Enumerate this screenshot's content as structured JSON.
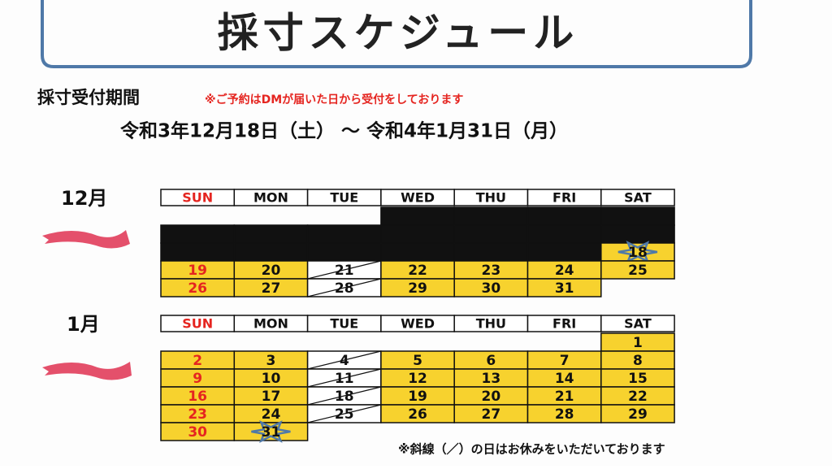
{
  "header": {
    "title": "採寸スケジュール"
  },
  "period": {
    "label": "採寸受付期間",
    "note": "※ご予約はDMが届いた日から受付をしております",
    "range": "令和3年12月18日（土） ～ 令和4年1月31日（月）"
  },
  "weekdays": [
    "SUN",
    "MON",
    "TUE",
    "WED",
    "THU",
    "FRI",
    "SAT"
  ],
  "months": [
    {
      "label": "12月",
      "rows": [
        [
          null,
          null,
          null,
          null,
          null,
          null,
          null
        ],
        [
          null,
          null,
          null,
          null,
          null,
          null,
          null
        ],
        [
          null,
          null,
          null,
          null,
          null,
          null,
          "18"
        ],
        [
          "19",
          "20",
          "21",
          "22",
          "23",
          "24",
          "25"
        ],
        [
          "26",
          "27",
          "28",
          "29",
          "30",
          "31",
          null
        ]
      ],
      "styles": [
        [
          "w",
          "w",
          "w",
          "k",
          "k",
          "k",
          "k"
        ],
        [
          "k",
          "k",
          "k",
          "k",
          "k",
          "k",
          "k"
        ],
        [
          "k",
          "k",
          "k",
          "k",
          "k",
          "k",
          "s"
        ],
        [
          "y",
          "y",
          "x",
          "y",
          "y",
          "y",
          "y"
        ],
        [
          "y",
          "y",
          "x",
          "y",
          "y",
          "y",
          "w"
        ]
      ]
    },
    {
      "label": "1月",
      "rows": [
        [
          null,
          null,
          null,
          null,
          null,
          null,
          "1"
        ],
        [
          "2",
          "3",
          "4",
          "5",
          "6",
          "7",
          "8"
        ],
        [
          "9",
          "10",
          "11",
          "12",
          "13",
          "14",
          "15"
        ],
        [
          "16",
          "17",
          "18",
          "19",
          "20",
          "21",
          "22"
        ],
        [
          "23",
          "24",
          "25",
          "26",
          "27",
          "28",
          "29"
        ],
        [
          "30",
          "31",
          null,
          null,
          null,
          null,
          null
        ]
      ],
      "styles": [
        [
          "w",
          "w",
          "w",
          "w",
          "w",
          "w",
          "y"
        ],
        [
          "y",
          "y",
          "x",
          "y",
          "y",
          "y",
          "y"
        ],
        [
          "y",
          "y",
          "x",
          "y",
          "y",
          "y",
          "y"
        ],
        [
          "y",
          "y",
          "x",
          "y",
          "y",
          "y",
          "y"
        ],
        [
          "y",
          "y",
          "x",
          "y",
          "y",
          "y",
          "y"
        ],
        [
          "y",
          "s",
          "w",
          "w",
          "w",
          "w",
          "w"
        ]
      ]
    }
  ],
  "footer": {
    "note": "※斜線（／）の日はお休みをいただいております"
  }
}
